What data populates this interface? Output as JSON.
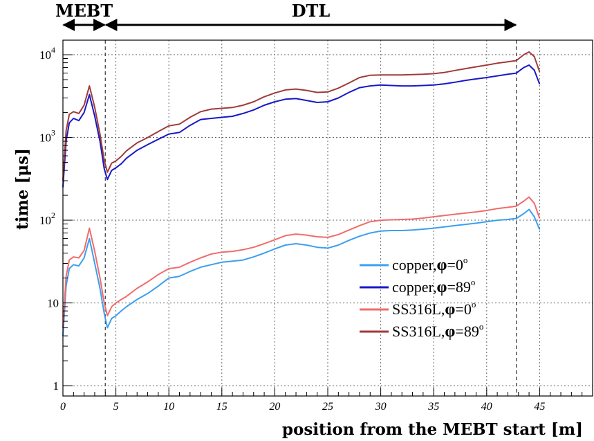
{
  "chart_data": {
    "type": "line",
    "xlabel": "position from the MEBT start [m]",
    "ylabel": "time [μs]",
    "xlim": [
      0,
      50
    ],
    "ylim": [
      0.75,
      15000
    ],
    "y_scale": "log",
    "grid": true,
    "x_ticks": [
      0,
      5,
      10,
      15,
      20,
      25,
      30,
      35,
      40,
      45
    ],
    "y_ticks": [
      {
        "value": 1,
        "label": "1"
      },
      {
        "value": 10,
        "label": "10"
      },
      {
        "value": 100,
        "label": "10",
        "exp": "2"
      },
      {
        "value": 1000,
        "label": "10",
        "exp": "3"
      },
      {
        "value": 10000,
        "label": "10",
        "exp": "4"
      }
    ],
    "sections": [
      {
        "label": "MEBT",
        "x_start": 0,
        "x_end": 4
      },
      {
        "label": "DTL",
        "x_start": 4,
        "x_end": 42.8
      }
    ],
    "vertical_markers": [
      4,
      42.8
    ],
    "legend": {
      "position": "right-middle",
      "phi_symbol": "φ",
      "degree_symbol": "o"
    },
    "series": [
      {
        "name": "copper,",
        "phi_value": "=0",
        "color": "#3a9ff0",
        "x": [
          0,
          0.3,
          0.6,
          1,
          1.5,
          2,
          2.5,
          3,
          3.5,
          3.9,
          4.2,
          4.6,
          5,
          5.5,
          6,
          7,
          8,
          9,
          10,
          11,
          12,
          13,
          14,
          15,
          16,
          17,
          18,
          19,
          20,
          21,
          22,
          23,
          24,
          25,
          26,
          27,
          28,
          29,
          30,
          31,
          32,
          33,
          34,
          35,
          36,
          37,
          38,
          39,
          40,
          41,
          42,
          42.8,
          43.5,
          44,
          44.5,
          45
        ],
        "values": [
          4,
          16,
          26,
          29,
          28,
          35,
          60,
          30,
          15,
          7.5,
          5,
          6.5,
          7,
          8,
          9,
          11,
          13,
          16,
          20,
          21,
          24,
          27,
          29,
          31,
          32,
          33,
          36,
          40,
          45,
          50,
          52,
          50,
          47,
          46,
          50,
          57,
          64,
          70,
          74,
          75,
          75,
          76,
          78,
          80,
          83,
          86,
          89,
          92,
          96,
          100,
          102,
          105,
          120,
          135,
          110,
          77
        ]
      },
      {
        "name": "copper,",
        "phi_value": "=89",
        "color": "#1818c8",
        "x": [
          0,
          0.3,
          0.6,
          1,
          1.5,
          2,
          2.5,
          3,
          3.5,
          3.9,
          4.2,
          4.6,
          5,
          5.5,
          6,
          7,
          8,
          9,
          10,
          11,
          12,
          13,
          14,
          15,
          16,
          17,
          18,
          19,
          20,
          21,
          22,
          23,
          24,
          25,
          26,
          27,
          28,
          29,
          30,
          31,
          32,
          33,
          34,
          35,
          36,
          37,
          38,
          39,
          40,
          41,
          42,
          42.8,
          43.5,
          44,
          44.5,
          45
        ],
        "values": [
          250,
          900,
          1500,
          1700,
          1600,
          2000,
          3300,
          1800,
          900,
          420,
          310,
          400,
          430,
          480,
          560,
          700,
          820,
          950,
          1100,
          1150,
          1400,
          1650,
          1700,
          1750,
          1800,
          1950,
          2150,
          2450,
          2700,
          2900,
          2950,
          2800,
          2650,
          2700,
          3000,
          3500,
          4000,
          4200,
          4300,
          4250,
          4200,
          4200,
          4250,
          4300,
          4450,
          4650,
          4900,
          5100,
          5300,
          5550,
          5800,
          6000,
          7000,
          7500,
          6500,
          4400
        ]
      },
      {
        "name": "SS316L,",
        "phi_value": "=0",
        "color": "#f26b6b",
        "x": [
          0,
          0.3,
          0.6,
          1,
          1.5,
          2,
          2.5,
          3,
          3.5,
          3.9,
          4.2,
          4.6,
          5,
          5.5,
          6,
          7,
          8,
          9,
          10,
          11,
          12,
          13,
          14,
          15,
          16,
          17,
          18,
          19,
          20,
          21,
          22,
          23,
          24,
          25,
          26,
          27,
          28,
          29,
          30,
          31,
          32,
          33,
          34,
          35,
          36,
          37,
          38,
          39,
          40,
          41,
          42,
          42.8,
          43.5,
          44,
          44.5,
          45
        ],
        "values": [
          5,
          21,
          33,
          36,
          35,
          43,
          80,
          42,
          20,
          10,
          7,
          9,
          10,
          11,
          12,
          15,
          18,
          22,
          26,
          27,
          31,
          35,
          39,
          41,
          42,
          44,
          47,
          52,
          58,
          65,
          68,
          66,
          63,
          62,
          67,
          76,
          86,
          96,
          100,
          101,
          102,
          103,
          106,
          110,
          114,
          118,
          122,
          126,
          131,
          138,
          143,
          148,
          170,
          190,
          160,
          105
        ]
      },
      {
        "name": "SS316L,",
        "phi_value": "=89",
        "color": "#a03a3a",
        "x": [
          0,
          0.3,
          0.6,
          1,
          1.5,
          2,
          2.5,
          3,
          3.5,
          3.9,
          4.2,
          4.6,
          5,
          5.5,
          6,
          7,
          8,
          9,
          10,
          11,
          12,
          13,
          14,
          15,
          16,
          17,
          18,
          19,
          20,
          21,
          22,
          23,
          24,
          25,
          26,
          27,
          28,
          29,
          30,
          31,
          32,
          33,
          34,
          35,
          36,
          37,
          38,
          39,
          40,
          41,
          42,
          42.8,
          43.5,
          44,
          44.5,
          45
        ],
        "values": [
          300,
          1200,
          1900,
          2050,
          1950,
          2450,
          4200,
          2300,
          1100,
          530,
          380,
          490,
          520,
          590,
          690,
          860,
          1000,
          1180,
          1380,
          1450,
          1750,
          2050,
          2200,
          2250,
          2300,
          2450,
          2700,
          3100,
          3450,
          3750,
          3850,
          3700,
          3500,
          3550,
          3950,
          4550,
          5300,
          5650,
          5700,
          5700,
          5700,
          5750,
          5800,
          5900,
          6100,
          6450,
          6800,
          7150,
          7500,
          7900,
          8200,
          8500,
          10000,
          10800,
          9500,
          6200
        ]
      }
    ]
  }
}
